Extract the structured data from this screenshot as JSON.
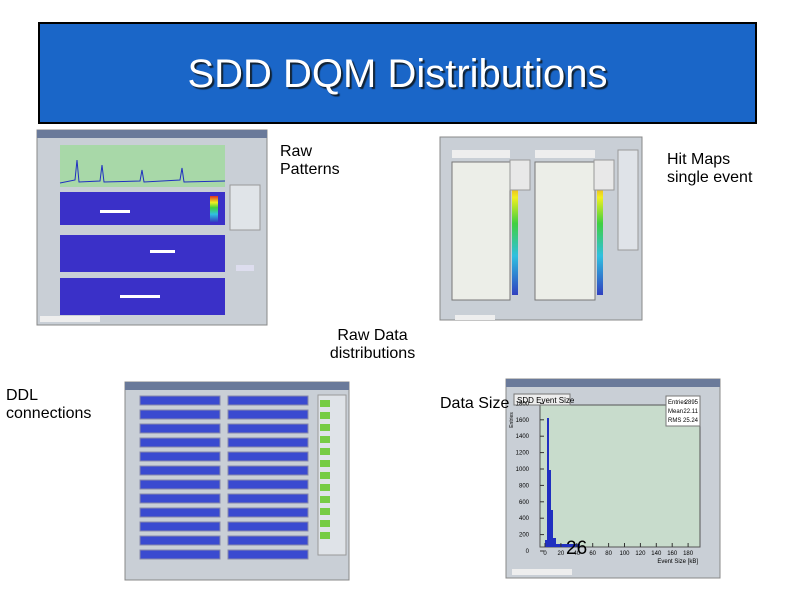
{
  "title": "SDD DQM Distributions",
  "labels": {
    "raw_patterns": [
      "Raw",
      "Patterns"
    ],
    "hit_maps": [
      "Hit Maps",
      "single event"
    ],
    "raw_data": [
      "Raw Data",
      "distributions"
    ],
    "ddl": [
      "DDL",
      "connections"
    ],
    "data_size": "Data Size"
  },
  "page_number": "26",
  "data_size_panel": {
    "title": "SDD Event Size",
    "stats": [
      [
        "Entries",
        "2895"
      ],
      [
        "Mean",
        "22.11"
      ],
      [
        "RMS",
        "25.24"
      ]
    ],
    "ylabel": "Entries",
    "xlabel": "Event Size [kB]",
    "yticks": [
      0,
      200,
      400,
      600,
      800,
      1000,
      1200,
      1400,
      1600,
      1800
    ],
    "xticks": [
      0,
      20,
      40,
      60,
      80,
      100,
      120,
      140,
      160,
      180
    ]
  }
}
